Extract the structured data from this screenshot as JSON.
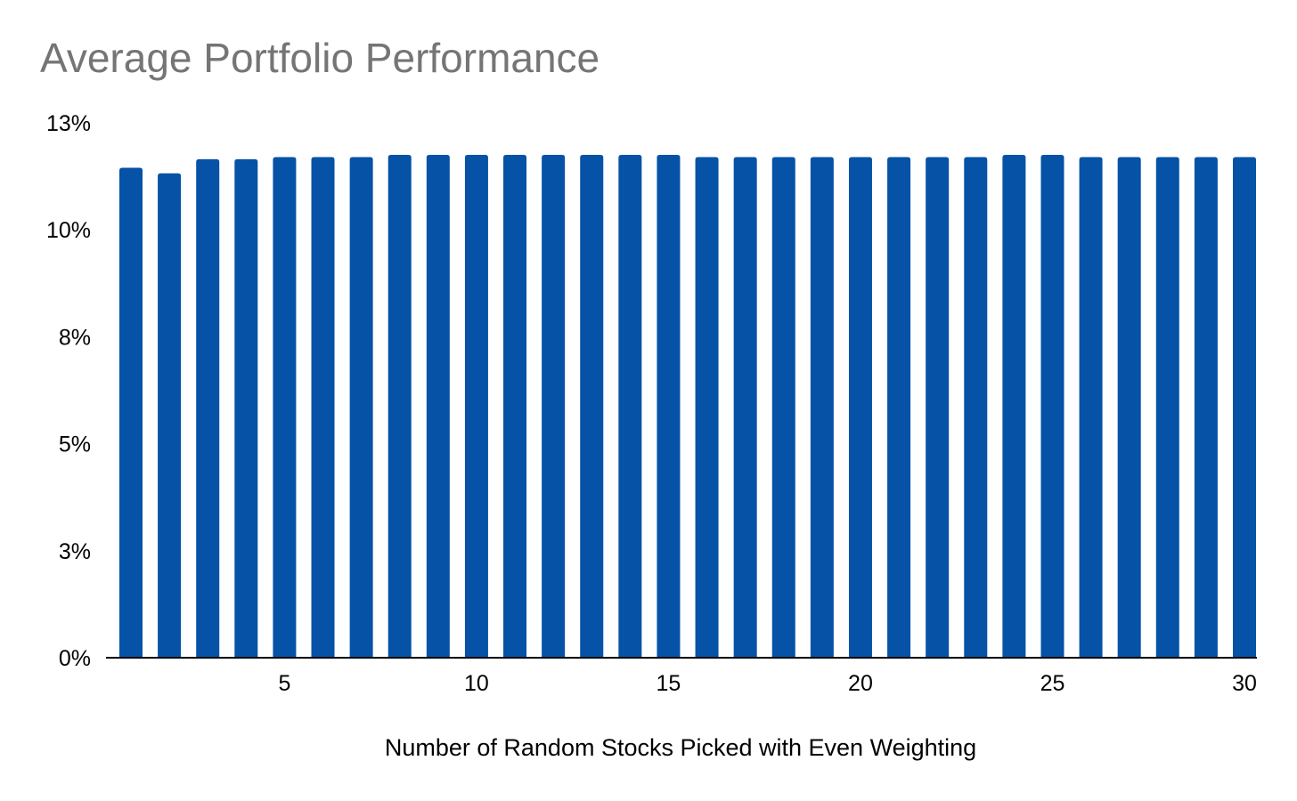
{
  "chart_data": {
    "type": "bar",
    "title": "Average Portfolio Performance",
    "xlabel": "Number of Random Stocks Picked with Even Weighting",
    "ylabel": "",
    "categories": [
      1,
      2,
      3,
      4,
      5,
      6,
      7,
      8,
      9,
      10,
      11,
      12,
      13,
      14,
      15,
      16,
      17,
      18,
      19,
      20,
      21,
      22,
      23,
      24,
      25,
      26,
      27,
      28,
      29,
      30
    ],
    "values": [
      11.45,
      11.32,
      11.65,
      11.65,
      11.7,
      11.7,
      11.7,
      11.75,
      11.75,
      11.75,
      11.75,
      11.75,
      11.75,
      11.75,
      11.75,
      11.7,
      11.7,
      11.7,
      11.7,
      11.7,
      11.7,
      11.7,
      11.7,
      11.75,
      11.75,
      11.7,
      11.7,
      11.7,
      11.7,
      11.7
    ],
    "x_tick_labels": [
      "5",
      "10",
      "15",
      "20",
      "25",
      "30"
    ],
    "x_ticks": [
      5,
      10,
      15,
      20,
      25,
      30
    ],
    "y_ticks": [
      0,
      2.5,
      5,
      7.5,
      10,
      12.5
    ],
    "y_tick_labels": [
      "0%",
      "3%",
      "5%",
      "8%",
      "10%",
      "13%"
    ],
    "ylim": [
      0,
      12.5
    ],
    "grid": false,
    "legend": "none",
    "colors": {
      "bar": "#0552a6",
      "title": "#757575",
      "axis": "#000000"
    }
  }
}
